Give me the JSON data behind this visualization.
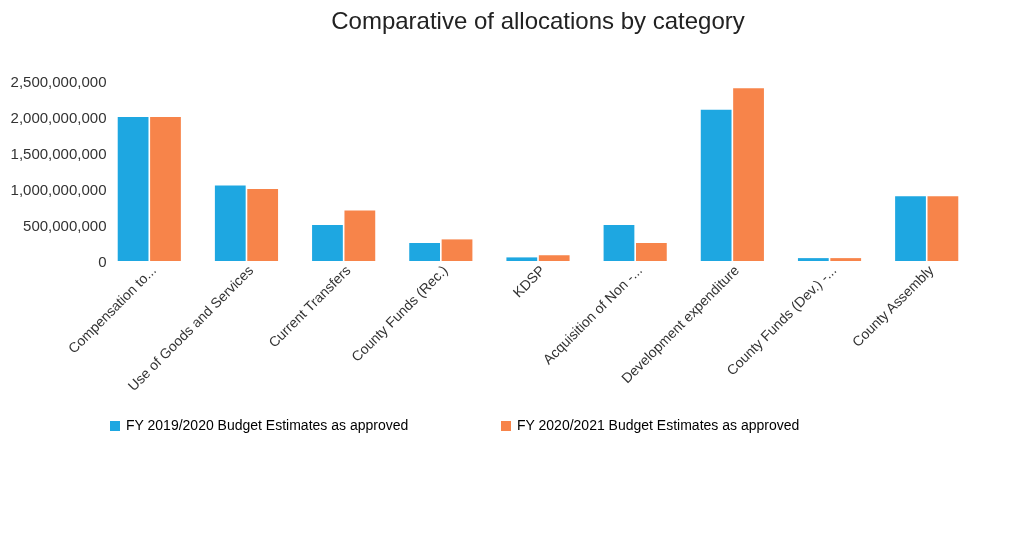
{
  "chart_data": {
    "type": "bar",
    "title": "Comparative of allocations by category",
    "categories": [
      "Compensation to...",
      "Use of Goods and Services",
      "Current Transfers",
      "County Funds (Rec.)",
      "KDSP",
      "Acquisition of Non -...",
      "Development expenditure",
      "County Funds (Dev.) -...",
      "County Assembly"
    ],
    "series": [
      {
        "name": "FY 2019/2020 Budget Estimates as approved",
        "color": "#1ea7e1",
        "values": [
          2000000000,
          1050000000,
          500000000,
          250000000,
          50000000,
          500000000,
          2100000000,
          40000000,
          900000000
        ]
      },
      {
        "name": "FY 2020/2021 Budget Estimates as approved",
        "color": "#f7844a",
        "values": [
          2000000000,
          1000000000,
          700000000,
          300000000,
          80000000,
          250000000,
          2400000000,
          40000000,
          900000000
        ]
      }
    ],
    "ylim": [
      0,
      2500000000
    ],
    "yticks": [
      0,
      {
        "value": 500000000,
        "label": "500,000,000"
      },
      {
        "value": 1000000000,
        "label": "1,000,000,000"
      },
      {
        "value": 1500000000,
        "label": "1,500,000,000"
      },
      {
        "value": 2000000000,
        "label": "2,000,000,000"
      },
      {
        "value": 2500000000,
        "label": "2,500,000,000"
      }
    ],
    "grid": false,
    "legend": "bottom"
  }
}
